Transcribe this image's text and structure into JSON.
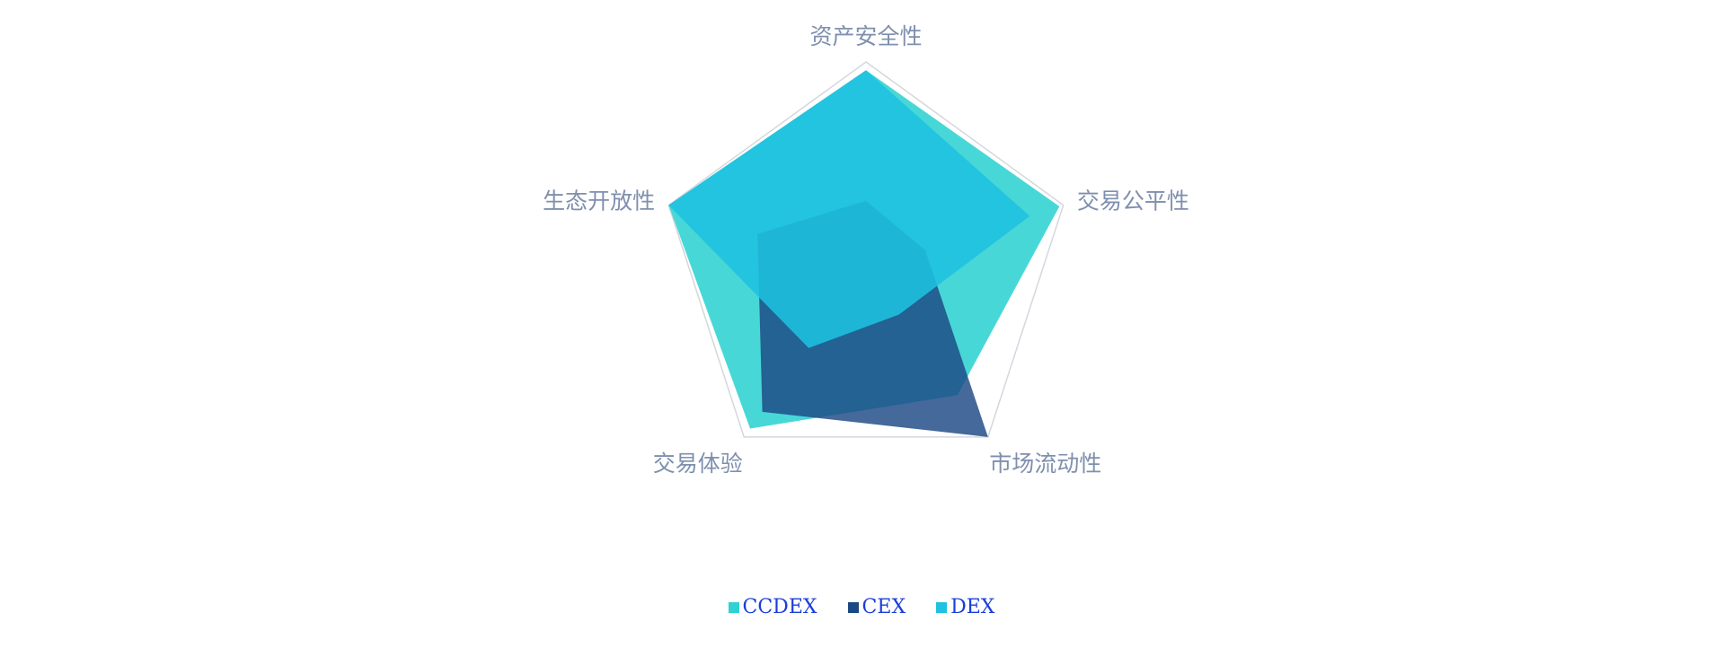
{
  "chart_data": {
    "type": "radar",
    "indicators": [
      "资产安全性",
      "交易公平性",
      "市场流动性",
      "交易体验",
      "生态开放性"
    ],
    "max": 100,
    "series": [
      {
        "name": "CCDEX",
        "values": [
          96,
          98,
          75,
          95,
          100
        ],
        "color": "#2fd1d1"
      },
      {
        "name": "CEX",
        "values": [
          33,
          30,
          100,
          85,
          55
        ],
        "color": "#1b4884"
      },
      {
        "name": "DEX",
        "values": [
          96,
          83,
          27,
          47,
          100
        ],
        "color": "#1ec2e0"
      }
    ],
    "legend_position": "bottom-center",
    "grid": "outer-pentagon-only"
  }
}
